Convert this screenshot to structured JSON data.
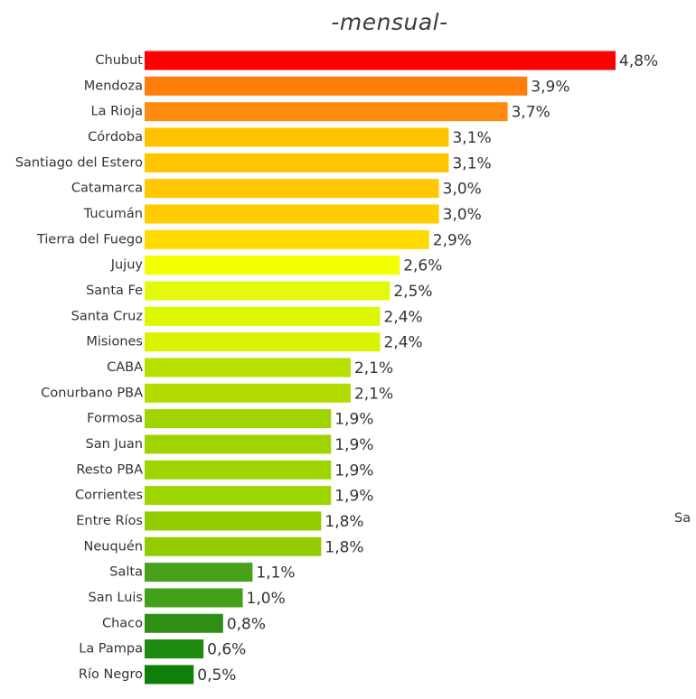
{
  "chart_data": {
    "type": "bar",
    "orientation": "horizontal",
    "title": "-mensual-",
    "xlabel": "",
    "ylabel": "",
    "grid": false,
    "xlim": [
      0,
      4.8
    ],
    "categories": [
      "Chubut",
      "Mendoza",
      "La Rioja",
      "Córdoba",
      "Santiago del Estero",
      "Catamarca",
      "Tucumán",
      "Tierra del Fuego",
      "Jujuy",
      "Santa Fe",
      "Santa Cruz",
      "Misiones",
      "CABA",
      "Conurbano PBA",
      "Formosa",
      "San Juan",
      "Resto PBA",
      "Corrientes",
      "Entre Ríos",
      "Neuquén",
      "Salta",
      "San Luis",
      "Chaco",
      "La Pampa",
      "Río Negro"
    ],
    "values": [
      4.8,
      3.9,
      3.7,
      3.1,
      3.1,
      3.0,
      3.0,
      2.9,
      2.6,
      2.5,
      2.4,
      2.4,
      2.1,
      2.1,
      1.9,
      1.9,
      1.9,
      1.9,
      1.8,
      1.8,
      1.1,
      1.0,
      0.8,
      0.6,
      0.5
    ],
    "value_labels": [
      "4,8%",
      "3,9%",
      "3,7%",
      "3,1%",
      "3,1%",
      "3,0%",
      "3,0%",
      "2,9%",
      "2,6%",
      "2,5%",
      "2,4%",
      "2,4%",
      "2,1%",
      "2,1%",
      "1,9%",
      "1,9%",
      "1,9%",
      "1,9%",
      "1,8%",
      "1,8%",
      "1,1%",
      "1,0%",
      "0,8%",
      "0,6%",
      "0,5%"
    ],
    "colors": [
      "#ff0000",
      "#ff7d0b",
      "#ff8c0f",
      "#ffc200",
      "#ffc600",
      "#ffc800",
      "#ffcc00",
      "#ffd900",
      "#f2ff00",
      "#e2f90c",
      "#dcf700",
      "#d8f200",
      "#b6e000",
      "#b2dc00",
      "#9ed400",
      "#9ed400",
      "#9ed400",
      "#9ed400",
      "#93cc00",
      "#93cc00",
      "#47a11b",
      "#44a019",
      "#2f8f14",
      "#1e8a0f",
      "#0f7f0a"
    ]
  },
  "cut_label": "Sa"
}
